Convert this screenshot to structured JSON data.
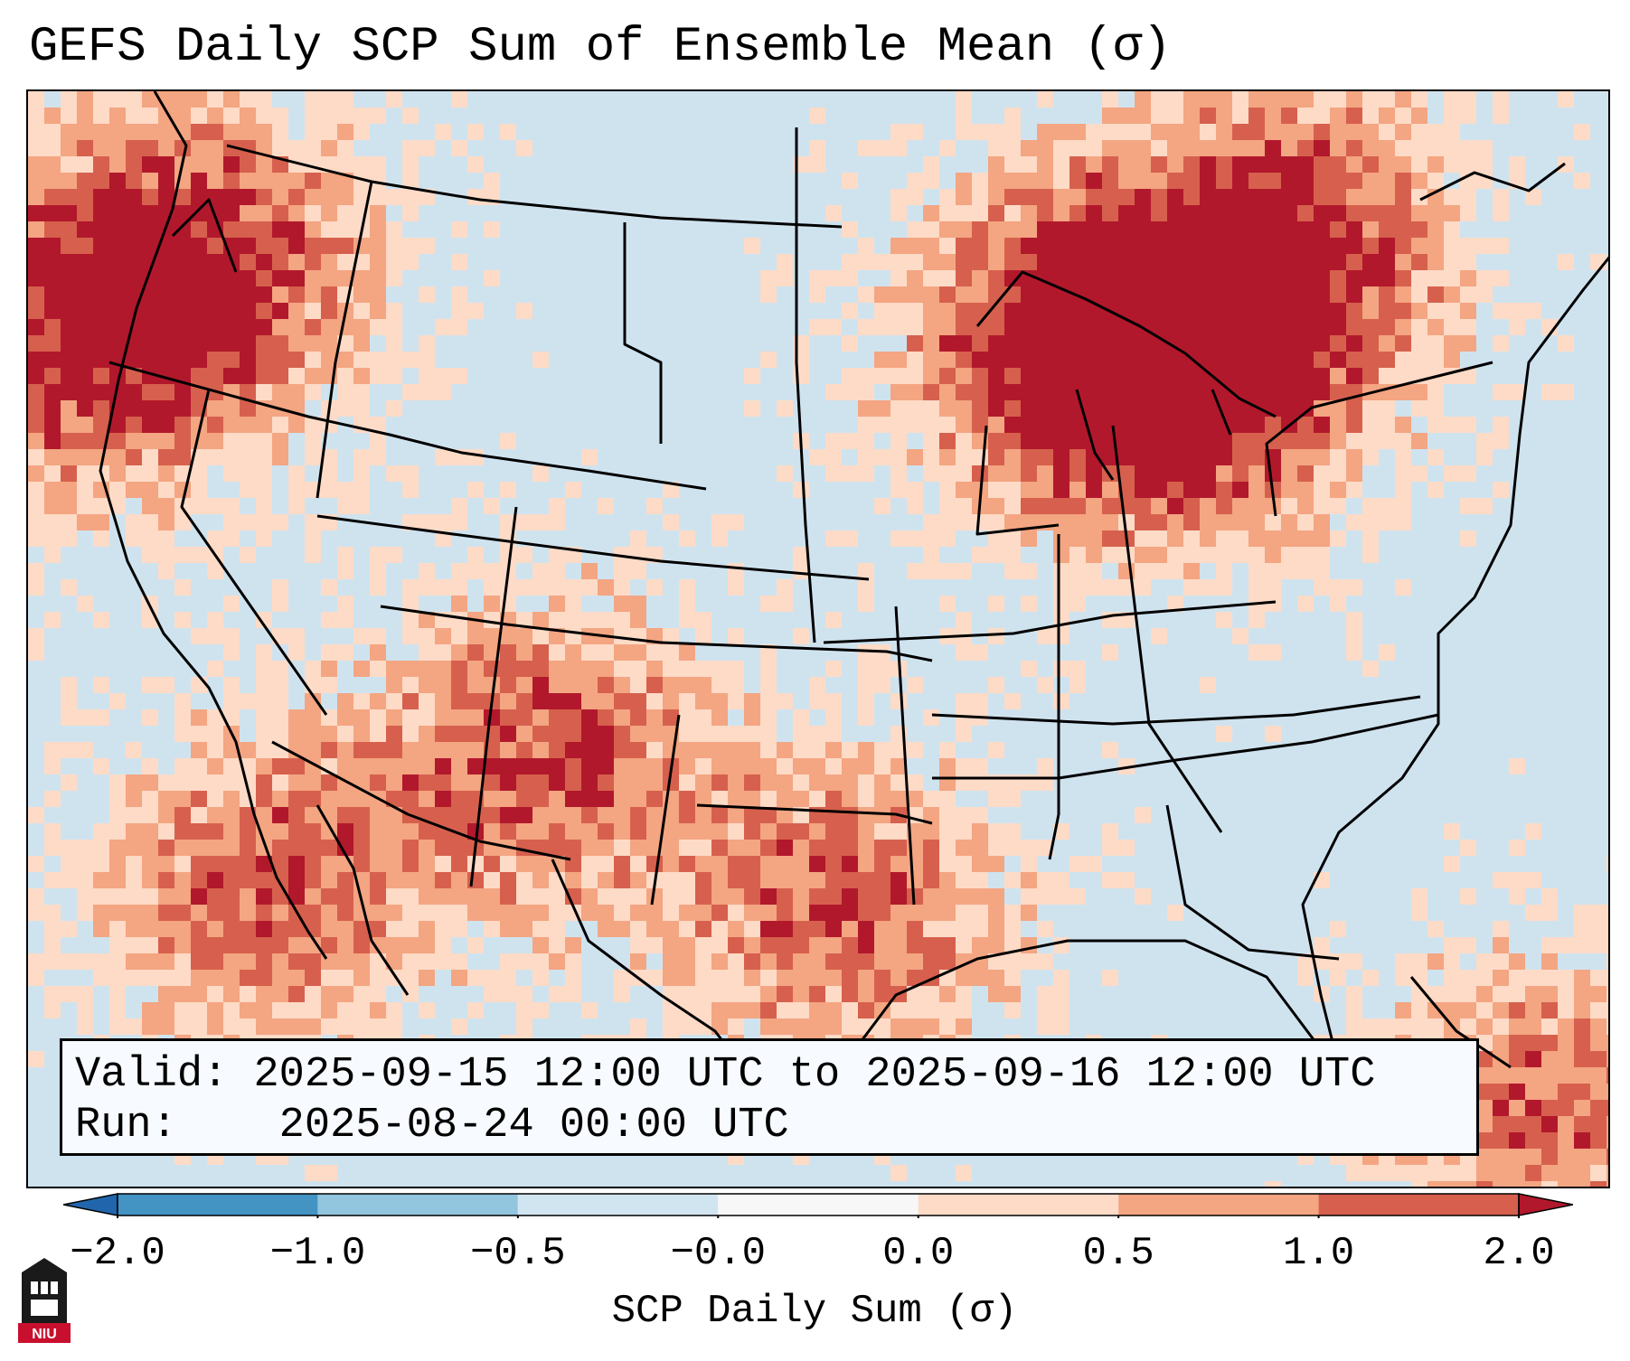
{
  "title": "GEFS Daily SCP Sum of Ensemble Mean (σ)",
  "info": {
    "valid_label": "Valid:",
    "valid_value": "2025-09-15 12:00 UTC to 2025-09-16 12:00 UTC",
    "run_label": "Run:",
    "run_value": "2025-08-24 00:00 UTC"
  },
  "colorbar": {
    "label": "SCP Daily Sum (σ)",
    "ticks": [
      "−2.0",
      "−1.0",
      "−0.5",
      "−0.0",
      "0.0",
      "0.5",
      "1.0",
      "2.0"
    ],
    "colors": [
      "#4393c3",
      "#92c5de",
      "#d1e5f0",
      "#f7f7f7",
      "#fddbc7",
      "#f4a582",
      "#d6604d"
    ],
    "under_color": "#2166ac",
    "over_color": "#b2182b"
  },
  "logo": {
    "text": "NIU",
    "icon": "niu-logo-icon"
  }
}
